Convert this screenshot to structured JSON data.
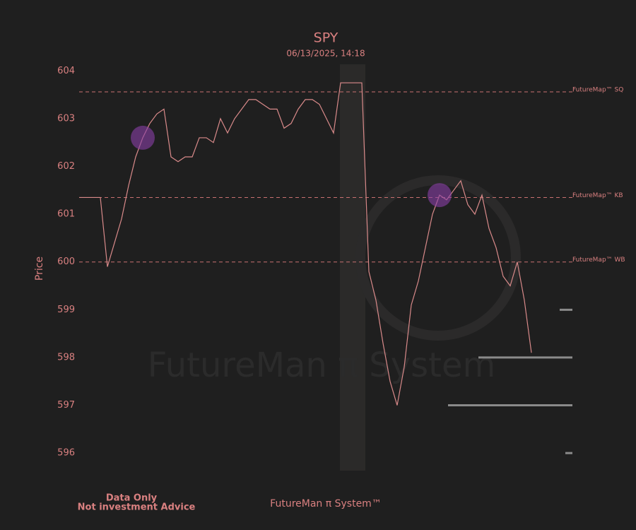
{
  "chart_data": {
    "type": "line",
    "title": "SPY",
    "subtitle": "06/13/2025, 14:18",
    "y_label": "Price",
    "watermark": "FutureMan π System",
    "footer_left": [
      "Data Only",
      "Not investment Advice"
    ],
    "footer_center": "FutureMan π System™",
    "series": [
      {
        "name": "SPY",
        "color": "#d98a8a",
        "values": [
          601.35,
          601.35,
          601.35,
          601.35,
          599.9,
          600.4,
          600.9,
          601.6,
          602.2,
          602.6,
          602.9,
          603.1,
          603.2,
          602.2,
          602.1,
          602.2,
          602.2,
          602.6,
          602.6,
          602.5,
          603.0,
          602.7,
          603.0,
          603.2,
          603.4,
          603.4,
          603.3,
          603.2,
          603.2,
          602.8,
          602.9,
          603.2,
          603.4,
          603.4,
          603.3,
          603.0,
          602.7,
          603.75,
          603.75,
          603.75,
          603.75,
          599.8,
          599.2,
          598.3,
          597.5,
          597.0,
          597.8,
          599.1,
          599.6,
          600.3,
          601.0,
          601.4,
          601.3,
          601.5,
          601.7,
          601.2,
          601.0,
          601.4,
          600.7,
          600.3,
          599.7,
          599.5,
          600.0,
          599.2,
          598.1
        ]
      }
    ],
    "reference_lines": [
      {
        "value": 603.56,
        "label": "FutureMap™ SQ"
      },
      {
        "value": 601.35,
        "label": "FutureMap™ KB"
      },
      {
        "value": 600.0,
        "label": "FutureMap™ WB"
      }
    ],
    "levels": [
      599,
      598,
      597,
      596
    ],
    "ylim": [
      595.65,
      604.13
    ],
    "yticks": [
      596,
      597,
      598,
      599,
      600,
      601,
      602,
      603,
      604
    ]
  }
}
